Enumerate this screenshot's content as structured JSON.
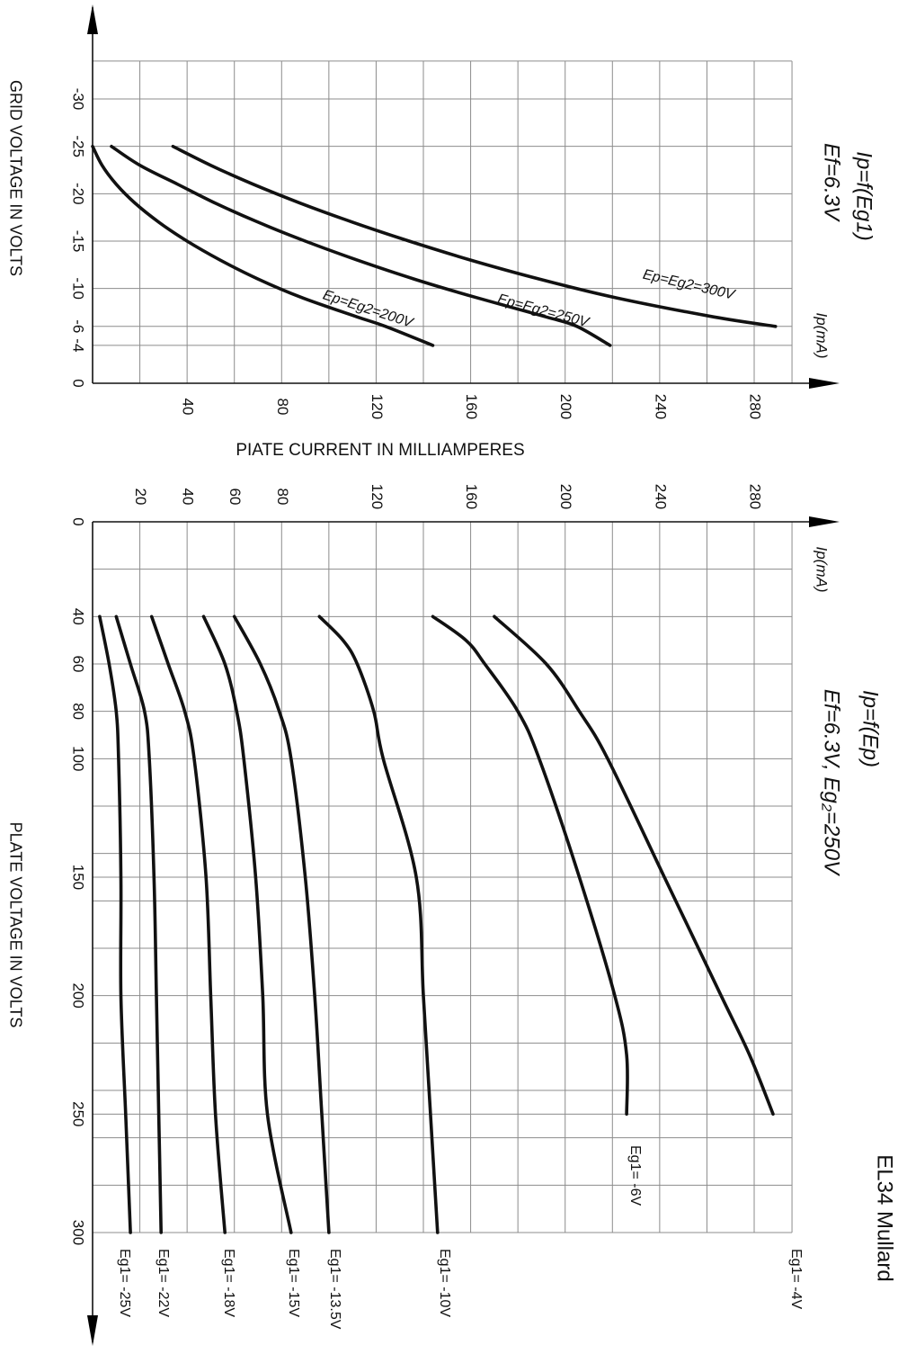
{
  "brand_label": "EL34 Mullard",
  "colors": {
    "curve": "#111111",
    "grid": "#8c8c8c",
    "background": "#ffffff"
  },
  "chart_data": [
    {
      "type": "line",
      "title": "Ip=f(Eg1)",
      "subtitle": "Ef=6.3V",
      "xlabel": "GRID VOLTAGE IN VOLTS",
      "ylabel": "PIATE CURRENT IN MILLIAMPERES",
      "y_axis_name": "Ip(mA)",
      "xlim": [
        -34,
        0
      ],
      "ylim": [
        0,
        296
      ],
      "x_ticks": [
        -30,
        -25,
        -20,
        -15,
        -10,
        -6,
        -4,
        0
      ],
      "x_tick_labels": [
        "-30",
        "-25",
        "-20",
        "-15",
        "-10",
        "-6",
        "-4",
        "0"
      ],
      "y_ticks": [
        40,
        80,
        120,
        160,
        200,
        240,
        280
      ],
      "y_tick_labels": [
        "40",
        "80",
        "120",
        "160",
        "200",
        "240",
        "280"
      ],
      "x_gridlines": [
        -34,
        -30,
        -25,
        -20,
        -15,
        -10,
        -6,
        -4,
        0
      ],
      "y_gridlines": [
        0,
        20,
        40,
        60,
        80,
        100,
        120,
        140,
        160,
        180,
        200,
        220,
        240,
        260,
        280
      ],
      "grid": true,
      "series": [
        {
          "name": "Ep=Eg2=200V",
          "x": [
            -25,
            -23,
            -21,
            -19,
            -17,
            -15,
            -13,
            -11,
            -9,
            -7,
            -6,
            -4
          ],
          "y": [
            0,
            4,
            10,
            18,
            28,
            40,
            54,
            70,
            89,
            112,
            124,
            144
          ]
        },
        {
          "name": "Ep=Eg2=250V",
          "x": [
            -25,
            -23,
            -21,
            -19,
            -17,
            -15,
            -13,
            -11,
            -9,
            -7,
            -6,
            -4
          ],
          "y": [
            8,
            20,
            36,
            52,
            70,
            90,
            112,
            136,
            163,
            192,
            205,
            219
          ]
        },
        {
          "name": "Ep=Eg2=300V",
          "x": [
            -25,
            -23,
            -21,
            -19,
            -17,
            -15,
            -13,
            -11,
            -9,
            -7,
            -6
          ],
          "y": [
            34,
            50,
            68,
            88,
            110,
            134,
            160,
            189,
            222,
            263,
            289
          ]
        }
      ]
    },
    {
      "type": "line",
      "title": "Ip=f(Ep)",
      "subtitle": "Ef=6.3V, Eg₂=250V",
      "xlabel": "PLATE VOLTAGE IN VOLTS",
      "y_axis_name": "Ip(mA)",
      "xlim": [
        0,
        300
      ],
      "ylim": [
        0,
        296
      ],
      "x_ticks": [
        0,
        40,
        60,
        80,
        100,
        150,
        200,
        250,
        300
      ],
      "x_tick_labels": [
        "0",
        "40",
        "60",
        "80",
        "100",
        "150",
        "200",
        "250",
        "300"
      ],
      "y_ticks": [
        20,
        40,
        60,
        80,
        120,
        160,
        200,
        240,
        280
      ],
      "y_tick_labels": [
        "20",
        "40",
        "60",
        "80",
        "120",
        "160",
        "200",
        "240",
        "280"
      ],
      "x_gridlines": [
        0,
        20,
        40,
        60,
        80,
        100,
        120,
        140,
        150,
        160,
        180,
        200,
        220,
        240,
        250,
        260,
        280,
        300
      ],
      "y_gridlines": [
        0,
        20,
        40,
        60,
        80,
        100,
        120,
        140,
        160,
        180,
        200,
        220,
        240,
        260,
        280
      ],
      "grid": true,
      "series": [
        {
          "name": "Eg1= -4V",
          "x": [
            40,
            60,
            80,
            100,
            150,
            200,
            225,
            250
          ],
          "y": [
            170,
            192,
            206,
            218,
            242,
            266,
            278,
            288
          ]
        },
        {
          "name": "Eg1= -6V",
          "x": [
            40,
            50,
            60,
            80,
            100,
            150,
            200,
            225,
            250
          ],
          "y": [
            144,
            158,
            166,
            180,
            189,
            206,
            221,
            226,
            226
          ]
        },
        {
          "name": "Eg1= -10V",
          "x": [
            40,
            50,
            60,
            80,
            100,
            150,
            200,
            250,
            300
          ],
          "y": [
            96,
            106,
            112,
            119,
            123,
            137,
            140,
            143,
            146
          ]
        },
        {
          "name": "Eg1= -13.5V",
          "x": [
            40,
            60,
            80,
            100,
            150,
            200,
            250,
            300
          ],
          "y": [
            60,
            71,
            79,
            84,
            90,
            94,
            97,
            100
          ]
        },
        {
          "name": "Eg1= -15V",
          "x": [
            40,
            60,
            80,
            100,
            150,
            200,
            250,
            300
          ],
          "y": [
            47,
            56,
            61,
            64,
            69,
            72,
            74,
            84
          ]
        },
        {
          "name": "Eg1= -18V",
          "x": [
            40,
            60,
            80,
            100,
            150,
            200,
            250,
            300
          ],
          "y": [
            25,
            32,
            39,
            43,
            48,
            50,
            52,
            56
          ]
        },
        {
          "name": "Eg1= -22V",
          "x": [
            40,
            60,
            80,
            100,
            150,
            200,
            250,
            300
          ],
          "y": [
            10,
            16,
            22,
            24,
            26,
            27,
            28,
            29
          ]
        },
        {
          "name": "Eg1= -25V",
          "x": [
            40,
            60,
            80,
            100,
            150,
            200,
            250,
            300
          ],
          "y": [
            3,
            7,
            10,
            11,
            12,
            12,
            14,
            16
          ]
        }
      ]
    }
  ]
}
